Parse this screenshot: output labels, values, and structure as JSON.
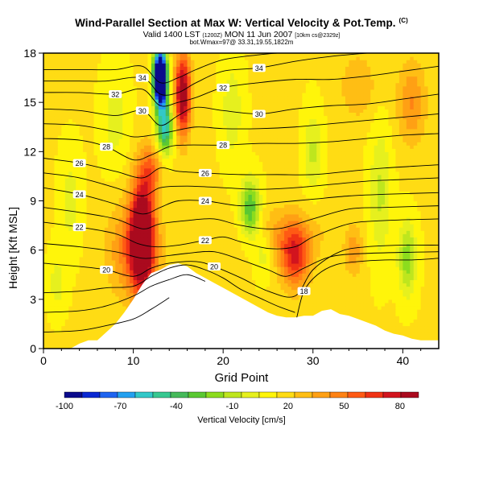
{
  "header": {
    "title": "Wind-Parallel Section at Max W: Vertical Velocity & Pot.Temp.",
    "title_sup": "(C)",
    "subtitle_a": "Valid 1400 LST",
    "subtitle_b": "(1200Z)",
    "subtitle_c": "MON 11 Jun 2007",
    "subtitle_d": "[10km cs@2329z]",
    "subtitle2": "bot.Wmax=97@ 33.31,19.55,1822m"
  },
  "chart_data": {
    "type": "heatmap",
    "title": "Wind-Parallel Section at Max W: Vertical Velocity & Pot.Temp.",
    "xlabel": "Grid Point",
    "ylabel": "Height [Kft MSL]",
    "xlim": [
      0,
      44
    ],
    "ylim": [
      0,
      18
    ],
    "x_ticks": [
      0,
      10,
      20,
      30,
      40
    ],
    "y_ticks": [
      0,
      3,
      6,
      9,
      12,
      15,
      18
    ],
    "colorbar": {
      "label": "Vertical Velocity [cm/s]",
      "min": -100,
      "max": 90,
      "tick_values": [
        -100,
        -70,
        -40,
        -10,
        20,
        50,
        80
      ],
      "colors": [
        "#0a0a8c",
        "#0a28d2",
        "#1e64f0",
        "#23a0f0",
        "#32c8c8",
        "#37c891",
        "#46b95a",
        "#5ac832",
        "#8cdc1e",
        "#bee61e",
        "#e6f01e",
        "#fff50a",
        "#ffdc14",
        "#ffbe14",
        "#ffa014",
        "#ff8214",
        "#ff5a14",
        "#f03214",
        "#d2141e",
        "#aa0a1e"
      ]
    },
    "terrain_profile_x": [
      0,
      1,
      2,
      3,
      4,
      5,
      6,
      7,
      8,
      9,
      10,
      11,
      12,
      13,
      14,
      15,
      16,
      17,
      18,
      19,
      20,
      21,
      22,
      23,
      24,
      25,
      26,
      27,
      28,
      29,
      30,
      31,
      32,
      33,
      34,
      35,
      36,
      37,
      38,
      39,
      40,
      41,
      42,
      43,
      44
    ],
    "terrain_profile_kft": [
      0,
      0,
      0,
      0,
      0.3,
      0.5,
      0.5,
      1.0,
      1.5,
      2.2,
      3.0,
      3.9,
      4.6,
      4.8,
      5.1,
      5.2,
      5.0,
      4.6,
      4.3,
      4.0,
      3.7,
      3.4,
      3.1,
      2.8,
      2.5,
      2.2,
      2.0,
      1.9,
      1.9,
      2.0,
      2.0,
      2.3,
      2.4,
      2.1,
      2.0,
      1.8,
      1.6,
      1.4,
      1.1,
      0.9,
      0.8,
      0.6,
      0.5,
      0.5,
      0.5
    ],
    "w_features": [
      {
        "x": 11,
        "y": 7.0,
        "sx": 1.3,
        "sy": 3.5,
        "value": 88
      },
      {
        "x": 10,
        "y": 6.0,
        "sx": 2.8,
        "sy": 2.8,
        "value": 35
      },
      {
        "x": 15.5,
        "y": 15.5,
        "sx": 0.9,
        "sy": 2.5,
        "value": 80
      },
      {
        "x": 13,
        "y": 16.5,
        "sx": 0.7,
        "sy": 1.6,
        "value": -195
      },
      {
        "x": 13.5,
        "y": 13.5,
        "sx": 0.9,
        "sy": 1.6,
        "value": -70
      },
      {
        "x": 28,
        "y": 5.5,
        "sx": 1.6,
        "sy": 1.8,
        "value": 52
      },
      {
        "x": 27,
        "y": 7.0,
        "sx": 4.0,
        "sy": 1.6,
        "value": 22
      },
      {
        "x": 23,
        "y": 8.5,
        "sx": 1.1,
        "sy": 1.8,
        "value": -50
      },
      {
        "x": 24.5,
        "y": 6.0,
        "sx": 1.0,
        "sy": 1.5,
        "value": -20
      },
      {
        "x": 40.5,
        "y": 5.5,
        "sx": 1.0,
        "sy": 2.2,
        "value": -35
      },
      {
        "x": 37.5,
        "y": 9.5,
        "sx": 1.2,
        "sy": 4.0,
        "value": -22
      },
      {
        "x": 30,
        "y": 12.0,
        "sx": 1.0,
        "sy": 2.5,
        "value": -22
      },
      {
        "x": 21,
        "y": 14.5,
        "sx": 1.2,
        "sy": 3.0,
        "value": -18
      },
      {
        "x": 8,
        "y": 14.0,
        "sx": 1.5,
        "sy": 3.0,
        "value": -15
      },
      {
        "x": 3,
        "y": 9.0,
        "sx": 1.2,
        "sy": 3.0,
        "value": -15
      },
      {
        "x": 1.5,
        "y": 4.0,
        "sx": 1.0,
        "sy": 1.8,
        "value": -15
      },
      {
        "x": 41,
        "y": 15.0,
        "sx": 1.6,
        "sy": 2.5,
        "value": 28
      },
      {
        "x": 35,
        "y": 16.0,
        "sx": 2.0,
        "sy": 2.0,
        "value": 18
      },
      {
        "x": 34.5,
        "y": 6.0,
        "sx": 1.0,
        "sy": 1.5,
        "value": 25
      },
      {
        "x": 17,
        "y": 3.5,
        "sx": 1.8,
        "sy": 1.0,
        "value": 15
      },
      {
        "x": 12,
        "y": 11.0,
        "sx": 1.2,
        "sy": 1.5,
        "value": 30
      }
    ],
    "theta_contours": [
      {
        "label": "18",
        "points": [
          [
            28.2,
            1.9
          ],
          [
            29.0,
            3.5
          ],
          [
            30.5,
            4.5
          ],
          [
            32.5,
            5.1
          ],
          [
            35,
            5.3
          ],
          [
            38,
            5.4
          ],
          [
            41,
            5.4
          ],
          [
            44,
            5.5
          ]
        ]
      },
      {
        "label": "20",
        "points": [
          [
            0,
            5.2
          ],
          [
            4,
            5.0
          ],
          [
            7,
            4.8
          ],
          [
            10,
            4.4
          ],
          [
            12,
            4.9
          ],
          [
            14,
            5.2
          ],
          [
            17,
            5.3
          ],
          [
            19,
            5.0
          ],
          [
            22,
            4.3
          ],
          [
            25,
            3.5
          ],
          [
            28,
            3.2
          ],
          [
            30,
            4.8
          ],
          [
            33,
            5.9
          ],
          [
            36,
            6.2
          ],
          [
            40,
            6.3
          ],
          [
            44,
            6.3
          ]
        ]
      },
      {
        "label": "22",
        "points": [
          [
            0,
            7.7
          ],
          [
            4,
            7.4
          ],
          [
            8,
            7.0
          ],
          [
            10.5,
            6.4
          ],
          [
            12.5,
            6.2
          ],
          [
            15,
            6.3
          ],
          [
            18,
            6.6
          ],
          [
            20,
            6.8
          ],
          [
            22,
            6.5
          ],
          [
            25,
            6.1
          ],
          [
            28,
            6.2
          ],
          [
            30,
            6.8
          ],
          [
            34,
            7.6
          ],
          [
            38,
            7.8
          ],
          [
            44,
            7.9
          ]
        ]
      },
      {
        "label": "24",
        "points": [
          [
            0,
            9.8
          ],
          [
            4,
            9.4
          ],
          [
            8,
            8.8
          ],
          [
            11,
            8.2
          ],
          [
            13,
            8.6
          ],
          [
            15,
            9.0
          ],
          [
            18,
            9.0
          ],
          [
            22,
            8.7
          ],
          [
            26,
            8.9
          ],
          [
            30,
            9.1
          ],
          [
            34,
            9.3
          ],
          [
            38,
            9.4
          ],
          [
            44,
            9.5
          ]
        ]
      },
      {
        "label": "26",
        "points": [
          [
            0,
            11.6
          ],
          [
            4,
            11.3
          ],
          [
            8,
            10.8
          ],
          [
            11,
            10.4
          ],
          [
            13,
            11.0
          ],
          [
            15,
            10.8
          ],
          [
            18,
            10.7
          ],
          [
            22,
            10.6
          ],
          [
            26,
            10.6
          ],
          [
            30,
            10.6
          ],
          [
            34,
            10.8
          ],
          [
            38,
            11.0
          ],
          [
            44,
            11.2
          ]
        ]
      },
      {
        "label": "28",
        "points": [
          [
            0,
            12.8
          ],
          [
            4,
            12.7
          ],
          [
            7,
            12.3
          ],
          [
            10,
            11.5
          ],
          [
            12,
            11.8
          ],
          [
            14,
            12.3
          ],
          [
            16,
            12.4
          ],
          [
            20,
            12.4
          ],
          [
            24,
            12.5
          ],
          [
            28,
            12.5
          ],
          [
            32,
            12.6
          ],
          [
            36,
            12.8
          ],
          [
            40,
            13.0
          ],
          [
            44,
            13.1
          ]
        ]
      },
      {
        "label": "30",
        "points": [
          [
            0,
            14.6
          ],
          [
            4,
            14.5
          ],
          [
            8,
            14.2
          ],
          [
            11,
            14.5
          ],
          [
            13,
            13.6
          ],
          [
            15,
            14.2
          ],
          [
            17,
            14.7
          ],
          [
            20,
            14.5
          ],
          [
            24,
            14.3
          ],
          [
            28,
            14.6
          ],
          [
            32,
            14.8
          ],
          [
            36,
            14.9
          ],
          [
            40,
            15.2
          ],
          [
            44,
            15.5
          ]
        ]
      },
      {
        "label": "32",
        "points": [
          [
            0,
            15.6
          ],
          [
            4,
            15.6
          ],
          [
            8,
            15.5
          ],
          [
            11,
            15.8
          ],
          [
            13,
            14.8
          ],
          [
            15,
            15.0
          ],
          [
            17,
            15.3
          ],
          [
            20,
            15.9
          ],
          [
            24,
            16.2
          ],
          [
            28,
            16.4
          ],
          [
            32,
            16.4
          ],
          [
            36,
            16.6
          ],
          [
            40,
            16.9
          ],
          [
            44,
            17.2
          ]
        ]
      },
      {
        "label": "34",
        "points": [
          [
            0,
            16.3
          ],
          [
            4,
            16.3
          ],
          [
            7,
            16.3
          ],
          [
            11,
            16.5
          ],
          [
            13,
            15.5
          ],
          [
            15,
            15.6
          ],
          [
            17,
            16.2
          ],
          [
            20,
            16.9
          ],
          [
            24,
            17.1
          ],
          [
            28,
            17.5
          ],
          [
            32,
            17.8
          ],
          [
            36,
            18.0
          ]
        ]
      },
      {
        "label": "",
        "points": [
          [
            0,
            1.0
          ],
          [
            4,
            1.1
          ],
          [
            7,
            1.4
          ],
          [
            10,
            1.8
          ],
          [
            12,
            2.4
          ],
          [
            14,
            3.1
          ]
        ]
      },
      {
        "label": "",
        "points": [
          [
            0,
            2.2
          ],
          [
            4,
            2.3
          ],
          [
            7,
            2.6
          ],
          [
            10,
            3.2
          ],
          [
            12,
            3.8
          ],
          [
            14,
            4.2
          ],
          [
            16,
            4.5
          ],
          [
            18,
            4.1
          ]
        ]
      },
      {
        "label": "",
        "points": [
          [
            0,
            3.4
          ],
          [
            4,
            3.5
          ],
          [
            7,
            3.7
          ],
          [
            10,
            3.8
          ],
          [
            12,
            4.4
          ],
          [
            14,
            4.9
          ],
          [
            16,
            5.1
          ],
          [
            18,
            4.8
          ],
          [
            20,
            4.3
          ],
          [
            22,
            3.6
          ],
          [
            24,
            3.1
          ],
          [
            26,
            2.6
          ],
          [
            28,
            2.2
          ]
        ]
      },
      {
        "label": "",
        "points": [
          [
            0,
            6.4
          ],
          [
            4,
            6.2
          ],
          [
            8,
            5.9
          ],
          [
            11,
            5.5
          ],
          [
            13,
            5.6
          ],
          [
            16,
            5.8
          ],
          [
            19,
            5.9
          ],
          [
            22,
            5.4
          ],
          [
            25,
            4.8
          ],
          [
            27,
            4.4
          ],
          [
            29,
            4.9
          ],
          [
            32,
            5.6
          ],
          [
            36,
            5.8
          ],
          [
            44,
            5.9
          ]
        ]
      },
      {
        "label": "",
        "points": [
          [
            0,
            8.6
          ],
          [
            4,
            8.3
          ],
          [
            8,
            7.9
          ],
          [
            11,
            7.3
          ],
          [
            13,
            7.6
          ],
          [
            16,
            7.8
          ],
          [
            19,
            7.9
          ],
          [
            22,
            7.5
          ],
          [
            26,
            7.3
          ],
          [
            30,
            7.9
          ],
          [
            34,
            8.5
          ],
          [
            38,
            8.6
          ],
          [
            44,
            8.7
          ]
        ]
      },
      {
        "label": "",
        "points": [
          [
            0,
            10.7
          ],
          [
            4,
            10.4
          ],
          [
            8,
            9.8
          ],
          [
            11,
            9.3
          ],
          [
            13,
            9.8
          ],
          [
            16,
            9.9
          ],
          [
            20,
            9.8
          ],
          [
            24,
            9.7
          ],
          [
            28,
            9.8
          ],
          [
            32,
            10.0
          ],
          [
            36,
            10.2
          ],
          [
            40,
            10.3
          ],
          [
            44,
            10.4
          ]
        ]
      },
      {
        "label": "",
        "points": [
          [
            0,
            13.7
          ],
          [
            4,
            13.6
          ],
          [
            8,
            13.2
          ],
          [
            10,
            12.9
          ],
          [
            12,
            13.0
          ],
          [
            14,
            13.2
          ],
          [
            17,
            13.5
          ],
          [
            20,
            13.4
          ],
          [
            24,
            13.4
          ],
          [
            28,
            13.5
          ],
          [
            32,
            13.7
          ],
          [
            36,
            13.9
          ],
          [
            40,
            14.1
          ],
          [
            44,
            14.3
          ]
        ]
      },
      {
        "label": "",
        "points": [
          [
            0,
            17.0
          ],
          [
            4,
            17.0
          ],
          [
            8,
            17.0
          ],
          [
            11,
            17.2
          ],
          [
            13,
            16.2
          ],
          [
            15,
            16.5
          ],
          [
            17,
            17.0
          ],
          [
            20,
            17.6
          ],
          [
            24,
            17.9
          ],
          [
            26,
            18.0
          ]
        ]
      }
    ]
  }
}
